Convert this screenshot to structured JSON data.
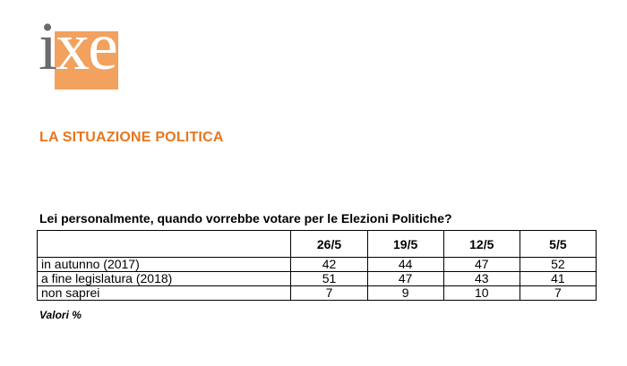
{
  "logo": {
    "text_i": "i",
    "text_x": "x",
    "text_e": "è"
  },
  "section_title": "LA SITUAZIONE POLITICA",
  "question": "Lei personalmente, quando vorrebbe votare per le Elezioni Politiche?",
  "table": {
    "columns": [
      "26/5",
      "19/5",
      "12/5",
      "5/5"
    ],
    "rows": [
      {
        "label": "in autunno (2017)",
        "values": [
          "42",
          "44",
          "47",
          "52"
        ]
      },
      {
        "label": "a fine legislatura (2018)",
        "values": [
          "51",
          "47",
          "43",
          "41"
        ]
      },
      {
        "label": "non saprei",
        "values": [
          "7",
          "9",
          "10",
          "7"
        ]
      }
    ]
  },
  "note": "Valori %",
  "colors": {
    "accent": "#e8761f",
    "logo_box": "#f2a15f",
    "logo_text": "#6b6b6b"
  }
}
